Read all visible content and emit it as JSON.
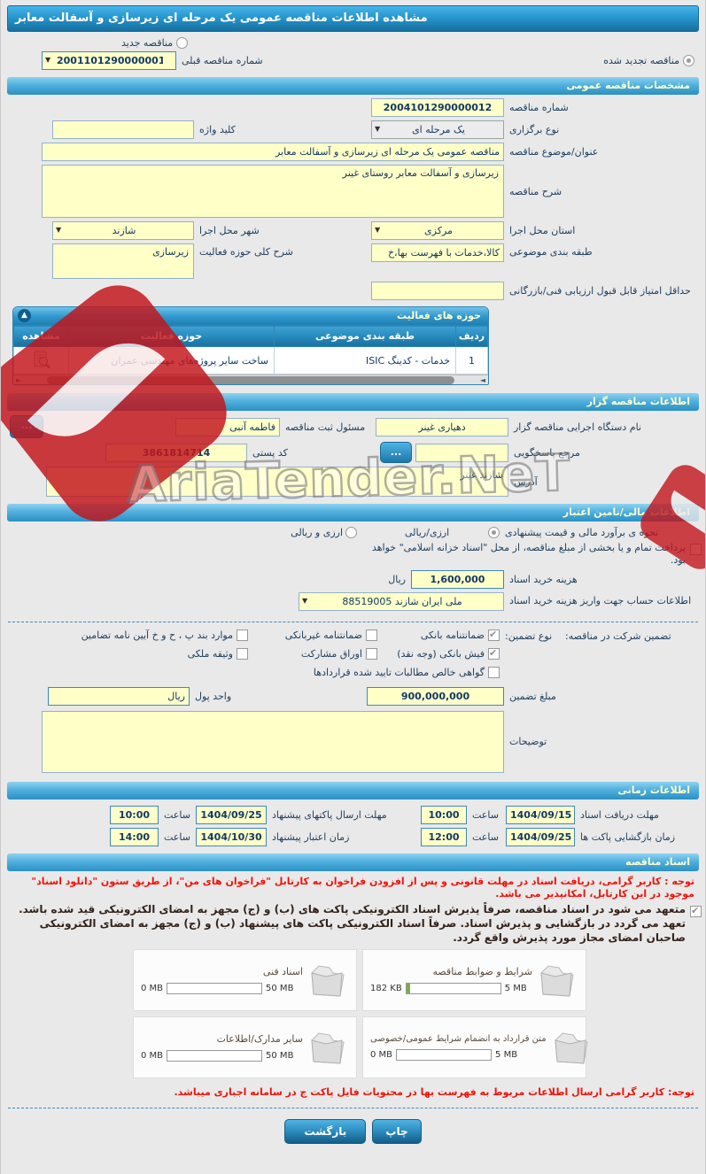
{
  "header": {
    "title": "مشاهده اطلاعات مناقصه عمومی یک مرحله ای زیرسازی و آسفالت معابر"
  },
  "renewal": {
    "new_label": "مناقصه جدید",
    "renewed_label": "مناقصه تجدید شده",
    "prev_no_label": "شماره مناقصه قبلی",
    "prev_no_value": "2001101290000001"
  },
  "specs": {
    "section_title": "مشخصات مناقصه عمومی",
    "tender_no_label": "شماره مناقصه",
    "tender_no_value": "2004101290000012",
    "type_label": "نوع برگزاری",
    "type_value": "یک مرحله ای",
    "keyword_label": "کلید واژه",
    "keyword_value": "",
    "subject_label": "عنوان/موضوع مناقصه",
    "subject_value": "مناقصه عمومی یک مرحله ای زیرسازی و آسفالت معابر",
    "desc_label": "شرح مناقصه",
    "desc_value": "زیرسازی و آسفالت معابر روستای غینر",
    "province_label": "استان محل اجرا",
    "province_value": "مرکزی",
    "city_label": "شهر محل اجرا",
    "city_value": "شازند",
    "category_label": "طبقه بندی موضوعی",
    "category_value": "کالا،خدمات با فهرست بها،خ",
    "activity_label": "شرح کلی حوزه فعالیت",
    "activity_value": "زیرسازی",
    "min_score_label": "حداقل امتیاز قابل قبول ارزیابی فنی/بازرگانی",
    "min_score_value": ""
  },
  "activity_table": {
    "title": "حوزه های فعالیت",
    "col_row": "ردیف",
    "col_category": "طبقه بندی موضوعی",
    "col_field": "حوزه فعالیت",
    "col_view": "مشاهده",
    "rows": [
      {
        "no": "1",
        "category": "خدمات - کدینگ ISIC",
        "field": "ساخت سایر پروژه‌های مهندسی عمران"
      }
    ]
  },
  "agency": {
    "section_title": "اطلاعات مناقصه گزار",
    "agency_label": "نام دستگاه اجرایی مناقصه گزار",
    "agency_value": "دهیاری غینر",
    "registrar_label": "مسئول ثبت مناقصه",
    "registrar_value": "فاطمه آنبی",
    "browse_label": "...",
    "contact_label": "مرجع پاسخگویی",
    "contact_value": "",
    "postal_label": "کد پستی",
    "postal_value": "3861814714",
    "address_label": "آدرس",
    "address_value": "شازند غینر"
  },
  "financial": {
    "section_title": "اطلاعات مالی/تامین اعتبار",
    "estimate_label": "نحوه ی برآورد مالی و قیمت پیشنهادی",
    "estimate_opt1": "ارزی/ریالی",
    "estimate_opt2": "ارزی و ریالی",
    "treasury_note": "پرداخت تمام و یا بخشی از مبلغ مناقصه، از محل \"اسناد خزانه اسلامی\" خواهد بود.",
    "doc_fee_label": "هزینه خرید اسناد",
    "doc_fee_value": "1,600,000",
    "doc_fee_unit": "ریال",
    "account_label": "اطلاعات حساب جهت واریز هزینه خرید اسناد",
    "account_value": "ملی ایران شازند 88519005"
  },
  "guarantee": {
    "group_label": "تضمین شرکت در مناقصه:",
    "type_label": "نوع تضمین:",
    "options": [
      {
        "label": "ضمانتنامه بانکی",
        "checked": true
      },
      {
        "label": "فیش بانکی (وجه نقد)",
        "checked": true
      },
      {
        "label": "گواهی خالص مطالبات تایید شده قراردادها",
        "checked": false
      },
      {
        "label": "ضمانتنامه غیربانکی",
        "checked": false
      },
      {
        "label": "اوراق مشارکت",
        "checked": false
      },
      {
        "label": "موارد بند پ ، ح و خ آیین نامه تضامین",
        "checked": false
      },
      {
        "label": "وثیقه ملکی",
        "checked": false
      }
    ],
    "amount_label": "مبلغ تضمین",
    "amount_value": "900,000,000",
    "currency_label": "واحد پول",
    "currency_value": "ریال",
    "notes_label": "توضیحات",
    "notes_value": ""
  },
  "schedule": {
    "section_title": "اطلاعات زمانی",
    "items": [
      {
        "label": "مهلت دریافت اسناد",
        "date": "1404/09/15",
        "time_label": "ساعت",
        "time": "10:00"
      },
      {
        "label": "مهلت ارسال پاکتهای پیشنهاد",
        "date": "1404/09/25",
        "time_label": "ساعت",
        "time": "10:00"
      },
      {
        "label": "زمان بازگشایی پاکت ها",
        "date": "1404/09/25",
        "time_label": "ساعت",
        "time": "12:00"
      },
      {
        "label": "زمان اعتبار پیشنهاد",
        "date": "1404/10/30",
        "time_label": "ساعت",
        "time": "14:00"
      }
    ]
  },
  "documents": {
    "section_title": "اسناد مناقصه",
    "notice1": "توجه : کاربر گرامی، دریافت اسناد در مهلت قانونی و پس از افزودن فراخوان به کارتابل \"فراخوان های من\"، از طریق ستون \"دانلود اسناد\" موجود در این کارتابل، امکانپذیر می باشد.",
    "commitment": "متعهد می شود در اسناد مناقصه، صرفاً پذیرش اسناد الکترونیکی پاکت های (ب) و (ج) مجهز به امضای الکترونیکی قید شده باشد. تعهد می گردد در بازگشایی و پذیرش اسناد. صرفاً اسناد الکترونیکی پاکت های پیشنهاد (ب) و (ج) مجهز به امضای الکترونیکی صاحبان امضای مجاز مورد پذیرش واقع گردد.",
    "files": [
      {
        "label": "شرایط و ضوابط مناقصه",
        "current": "182 KB",
        "max": "5 MB",
        "fill_pct": 4
      },
      {
        "label": "اسناد فنی",
        "current": "0 MB",
        "max": "50 MB",
        "fill_pct": 0
      },
      {
        "label": "متن قرارداد به انضمام شرایط عمومی/خصوصی",
        "current": "0 MB",
        "max": "5 MB",
        "fill_pct": 0
      },
      {
        "label": "سایر مدارک/اطلاعات",
        "current": "0 MB",
        "max": "50 MB",
        "fill_pct": 0
      }
    ],
    "notice2": "توجه: کاربر گرامی ارسال اطلاعات مربوط به فهرست بها در محتویات فایل پاکت ج در سامانه اجباری میباشد."
  },
  "actions": {
    "back_label": "بازگشت",
    "print_label": "چاپ"
  },
  "watermark": {
    "text": "AriaTender.NeT"
  },
  "colors": {
    "accent_blue": "#2b90c4",
    "input_yellow": "#ffffc8",
    "alert_red": "#f31108",
    "logo_red": "#c2151b"
  }
}
